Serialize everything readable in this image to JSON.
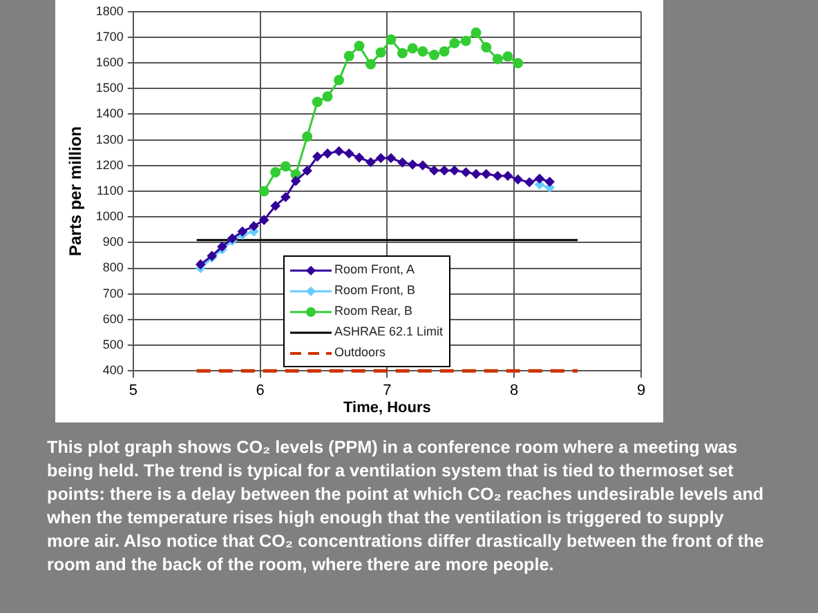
{
  "chart_data": {
    "type": "line",
    "xlabel": "Time, Hours",
    "ylabel": "Parts per million",
    "xlim": [
      5,
      9
    ],
    "xticks": [
      5,
      6,
      7,
      8,
      9
    ],
    "ylim": [
      400,
      1800
    ],
    "yticks": [
      400,
      500,
      600,
      700,
      800,
      900,
      1000,
      1100,
      1200,
      1300,
      1400,
      1500,
      1600,
      1700,
      1800
    ],
    "grid": true,
    "legend": "bottom",
    "series": [
      {
        "name": "Room Front, A",
        "color": "#330099",
        "marker": "diamond",
        "x": [
          5.53,
          5.62,
          5.7,
          5.78,
          5.86,
          5.95,
          6.03,
          6.12,
          6.2,
          6.28,
          6.37,
          6.45,
          6.53,
          6.62,
          6.7,
          6.78,
          6.87,
          6.95,
          7.03,
          7.12,
          7.2,
          7.28,
          7.37,
          7.45,
          7.53,
          7.62,
          7.7,
          7.78,
          7.87,
          7.95,
          8.03,
          8.12,
          8.2,
          8.28
        ],
        "values": [
          815,
          848,
          884,
          916,
          943,
          964,
          988,
          1043,
          1077,
          1140,
          1180,
          1235,
          1247,
          1256,
          1247,
          1231,
          1213,
          1229,
          1229,
          1212,
          1204,
          1201,
          1181,
          1181,
          1181,
          1174,
          1167,
          1167,
          1160,
          1160,
          1146,
          1135,
          1149,
          1137
        ]
      },
      {
        "name": "Room Front, B",
        "color": "#66ccff",
        "marker": "diamond",
        "x": [
          5.53,
          5.62,
          5.7,
          5.78,
          5.86,
          5.95,
          7.0,
          8.2,
          8.28
        ],
        "values": [
          800,
          841,
          873,
          907,
          930,
          943,
          null,
          1126,
          1114
        ]
      },
      {
        "name": "Room Rear, B",
        "color": "#33cc33",
        "marker": "circle",
        "x": [
          6.03,
          6.12,
          6.2,
          6.28,
          6.37,
          6.45,
          6.53,
          6.62,
          6.7,
          6.78,
          6.87,
          6.95,
          7.03,
          7.12,
          7.2,
          7.28,
          7.37,
          7.45,
          7.53,
          7.62,
          7.7,
          7.78,
          7.87,
          7.95,
          8.03
        ],
        "values": [
          1100,
          1174,
          1197,
          1165,
          1313,
          1448,
          1469,
          1533,
          1627,
          1666,
          1595,
          1641,
          1691,
          1638,
          1657,
          1645,
          1631,
          1645,
          1677,
          1686,
          1718,
          1661,
          1615,
          1625,
          1599
        ]
      },
      {
        "name": "ASHRAE 62.1 Limit",
        "color": "#000000",
        "marker": "none",
        "x": [
          5.5,
          8.5
        ],
        "values": [
          910,
          910
        ]
      },
      {
        "name": "Outdoors",
        "color": "#cc3300",
        "marker": "none",
        "line_style": "dashed",
        "x": [
          5.5,
          8.5
        ],
        "values": [
          400,
          400
        ]
      }
    ],
    "annotations": [
      "This plot graph shows CO₂ levels (PPM) in a conference room where a meeting was being held. The trend is typical for a ventilation system that is tied to thermoset set points: there is a delay between the point at which CO₂ reaches undesirable levels and when the temperature rises high enough that the ventilation is triggered to supply more air. Also notice that CO₂ concentrations differ drastically between the front of the room and the back of the room, where there are more people."
    ]
  }
}
